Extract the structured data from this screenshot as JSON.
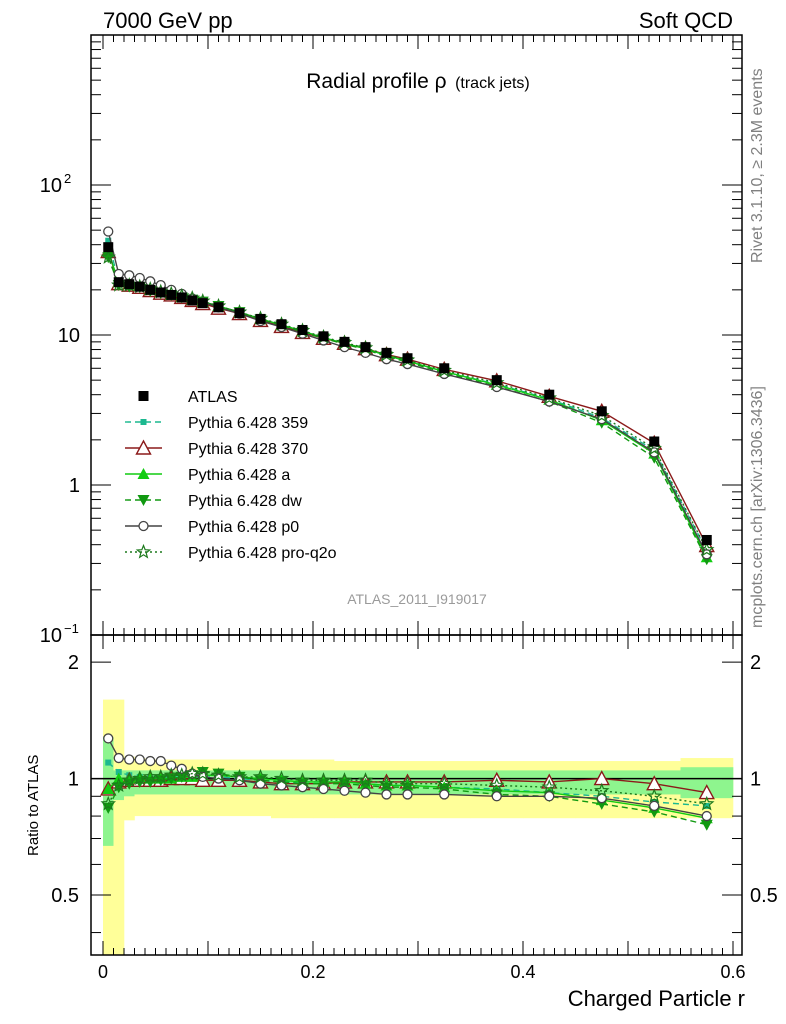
{
  "header": {
    "left": "7000 GeV pp",
    "right": "Soft QCD"
  },
  "side_labels": {
    "rivet": "Rivet 3.1.10, ≥ 2.3M events",
    "mcplots": "mcplots.cern.ch [arXiv:1306.3436]"
  },
  "chart_data": [
    {
      "type": "scatter",
      "title_main": "Radial profile ρ",
      "title_sub": "(track jets)",
      "watermark": "ATLAS_2011_I919017",
      "xlim": [
        0,
        0.6
      ],
      "ylim": [
        0.1,
        1000
      ],
      "yscale": "log",
      "ytick_labels": [
        {
          "value": 0.1,
          "base": "10",
          "exp": "−1"
        },
        {
          "value": 1,
          "base": "1",
          "exp": ""
        },
        {
          "value": 10,
          "base": "10",
          "exp": ""
        },
        {
          "value": 100,
          "base": "10",
          "exp": "2"
        }
      ],
      "legend_position": "lower-left",
      "x": [
        0.005,
        0.015,
        0.025,
        0.035,
        0.045,
        0.055,
        0.065,
        0.075,
        0.085,
        0.095,
        0.11,
        0.13,
        0.15,
        0.17,
        0.19,
        0.21,
        0.23,
        0.25,
        0.27,
        0.29,
        0.325,
        0.375,
        0.425,
        0.475,
        0.525,
        0.575
      ],
      "series": [
        {
          "name": "ATLAS",
          "color": "#000000",
          "marker": "square",
          "line": "none",
          "values": [
            38.5,
            22.5,
            21.8,
            21.0,
            20.0,
            19.2,
            18.5,
            17.8,
            17.0,
            16.3,
            15.3,
            14.0,
            12.8,
            11.8,
            10.8,
            9.8,
            9.0,
            8.3,
            7.6,
            7.0,
            6.0,
            5.0,
            4.0,
            3.1,
            1.95,
            0.43
          ]
        },
        {
          "name": "Pythia 6.428 359",
          "color": "#1bb88f",
          "marker": "small-square",
          "line": "dashed",
          "values": [
            42.5,
            22.5,
            22.0,
            21.5,
            20.5,
            19.5,
            18.7,
            18.0,
            17.2,
            16.5,
            15.4,
            14.0,
            12.7,
            11.6,
            10.6,
            9.6,
            8.8,
            8.1,
            7.3,
            6.7,
            5.7,
            4.7,
            3.75,
            2.8,
            1.7,
            0.365
          ]
        },
        {
          "name": "Pythia 6.428 370",
          "color": "#8b1a1a",
          "marker": "triangle-open",
          "line": "solid",
          "values": [
            36.0,
            22.0,
            21.5,
            20.8,
            19.8,
            19.0,
            18.5,
            17.8,
            17.0,
            16.2,
            15.1,
            13.9,
            12.5,
            11.4,
            10.4,
            9.5,
            8.8,
            8.1,
            7.4,
            6.9,
            5.9,
            4.95,
            3.9,
            3.1,
            1.9,
            0.395
          ]
        },
        {
          "name": "Pythia 6.428 a",
          "color": "#11cc11",
          "marker": "triangle",
          "line": "solid",
          "values": [
            36.0,
            22.5,
            21.8,
            21.2,
            20.0,
            19.2,
            18.5,
            17.9,
            17.2,
            16.6,
            15.6,
            14.2,
            12.8,
            11.7,
            10.6,
            9.6,
            8.8,
            8.1,
            7.3,
            6.7,
            5.7,
            4.65,
            3.7,
            2.7,
            1.62,
            0.33
          ]
        },
        {
          "name": "Pythia 6.428 dw",
          "color": "#119911",
          "marker": "triangle-down",
          "line": "dashed",
          "values": [
            33.0,
            21.5,
            21.0,
            20.8,
            19.7,
            19.0,
            18.5,
            17.8,
            17.2,
            16.7,
            15.6,
            14.2,
            12.7,
            11.6,
            10.5,
            9.5,
            8.7,
            8.0,
            7.2,
            6.6,
            5.6,
            4.55,
            3.6,
            2.6,
            1.52,
            0.32
          ]
        },
        {
          "name": "Pythia 6.428 p0",
          "color": "#444444",
          "marker": "circle-open",
          "line": "solid",
          "values": [
            49.0,
            25.5,
            25.0,
            24.0,
            22.8,
            21.5,
            20.0,
            18.8,
            17.5,
            16.5,
            15.3,
            13.9,
            12.4,
            11.3,
            10.2,
            9.2,
            8.3,
            7.6,
            6.9,
            6.4,
            5.5,
            4.5,
            3.6,
            2.75,
            1.65,
            0.345
          ]
        },
        {
          "name": "Pythia 6.428 pro-q2o",
          "color": "#1d7a1d",
          "marker": "star-open",
          "line": "dotted",
          "values": [
            33.0,
            21.5,
            21.5,
            21.0,
            20.2,
            19.4,
            18.8,
            18.2,
            17.6,
            16.8,
            15.6,
            14.2,
            12.9,
            11.8,
            10.7,
            9.7,
            8.9,
            8.2,
            7.4,
            6.8,
            5.8,
            4.8,
            3.8,
            2.9,
            1.75,
            0.37
          ]
        }
      ]
    },
    {
      "type": "scatter",
      "ylabel": "Ratio to ATLAS",
      "xlabel": "Charged Particle r",
      "xlim": [
        0,
        0.6
      ],
      "ylim": [
        0.35,
        2.35
      ],
      "yscale": "log",
      "xtick_labels": [
        "0",
        "0.2",
        "0.4",
        "0.6"
      ],
      "ytick_labels": [
        "0.5",
        "1",
        "2"
      ],
      "x": [
        0.005,
        0.015,
        0.025,
        0.035,
        0.045,
        0.055,
        0.065,
        0.075,
        0.085,
        0.095,
        0.11,
        0.13,
        0.15,
        0.17,
        0.19,
        0.21,
        0.23,
        0.25,
        0.27,
        0.29,
        0.325,
        0.375,
        0.425,
        0.475,
        0.525,
        0.575
      ],
      "bands": {
        "edges": [
          0.0,
          0.01,
          0.02,
          0.03,
          0.04,
          0.05,
          0.06,
          0.07,
          0.08,
          0.09,
          0.1,
          0.12,
          0.14,
          0.16,
          0.18,
          0.2,
          0.22,
          0.24,
          0.26,
          0.28,
          0.3,
          0.35,
          0.4,
          0.45,
          0.5,
          0.55,
          0.6
        ],
        "stat_color": "#8ef58e",
        "syst_color": "#ffff99",
        "syst": [
          [
            0.3,
            1.6
          ],
          [
            0.3,
            1.6
          ],
          [
            0.78,
            1.14
          ],
          [
            0.8,
            1.13
          ],
          [
            0.8,
            1.12
          ],
          [
            0.8,
            1.12
          ],
          [
            0.8,
            1.12
          ],
          [
            0.8,
            1.12
          ],
          [
            0.8,
            1.12
          ],
          [
            0.8,
            1.12
          ],
          [
            0.8,
            1.12
          ],
          [
            0.8,
            1.12
          ],
          [
            0.8,
            1.12
          ],
          [
            0.79,
            1.12
          ],
          [
            0.79,
            1.12
          ],
          [
            0.79,
            1.12
          ],
          [
            0.79,
            1.11
          ],
          [
            0.79,
            1.11
          ],
          [
            0.79,
            1.11
          ],
          [
            0.79,
            1.11
          ],
          [
            0.79,
            1.11
          ],
          [
            0.79,
            1.11
          ],
          [
            0.79,
            1.11
          ],
          [
            0.79,
            1.11
          ],
          [
            0.79,
            1.11
          ],
          [
            0.79,
            1.13
          ]
        ],
        "stat": [
          [
            0.67,
            1.28
          ],
          [
            0.88,
            1.05
          ],
          [
            0.9,
            1.05
          ],
          [
            0.91,
            1.05
          ],
          [
            0.91,
            1.05
          ],
          [
            0.91,
            1.05
          ],
          [
            0.91,
            1.05
          ],
          [
            0.91,
            1.05
          ],
          [
            0.91,
            1.05
          ],
          [
            0.91,
            1.05
          ],
          [
            0.91,
            1.05
          ],
          [
            0.91,
            1.05
          ],
          [
            0.91,
            1.05
          ],
          [
            0.91,
            1.05
          ],
          [
            0.91,
            1.05
          ],
          [
            0.91,
            1.05
          ],
          [
            0.91,
            1.05
          ],
          [
            0.91,
            1.05
          ],
          [
            0.91,
            1.05
          ],
          [
            0.91,
            1.05
          ],
          [
            0.91,
            1.05
          ],
          [
            0.91,
            1.05
          ],
          [
            0.91,
            1.05
          ],
          [
            0.91,
            1.05
          ],
          [
            0.91,
            1.05
          ],
          [
            0.89,
            1.07
          ]
        ]
      },
      "reference_line": 1,
      "series": [
        {
          "name": "Pythia 6.428 359",
          "color": "#1bb88f",
          "marker": "small-square",
          "line": "dashed",
          "values": [
            1.1,
            1.04,
            1.02,
            1.01,
            1.01,
            1.01,
            1.01,
            1.01,
            1.01,
            1.01,
            1.01,
            1.0,
            0.99,
            0.98,
            0.98,
            0.98,
            0.98,
            0.97,
            0.96,
            0.96,
            0.95,
            0.94,
            0.92,
            0.9,
            0.87,
            0.85
          ]
        },
        {
          "name": "Pythia 6.428 370",
          "color": "#8b1a1a",
          "marker": "triangle-open",
          "line": "solid",
          "values": [
            0.94,
            0.98,
            0.99,
            0.99,
            0.99,
            0.99,
            1.0,
            1.0,
            1.0,
            0.99,
            0.99,
            0.99,
            0.98,
            0.97,
            0.97,
            0.97,
            0.98,
            0.98,
            0.98,
            0.98,
            0.98,
            0.99,
            0.98,
            1.0,
            0.97,
            0.92
          ]
        },
        {
          "name": "Pythia 6.428 a",
          "color": "#11cc11",
          "marker": "triangle",
          "line": "solid",
          "values": [
            0.94,
            1.0,
            1.0,
            1.01,
            1.0,
            1.0,
            1.0,
            1.01,
            1.01,
            1.02,
            1.02,
            1.01,
            1.0,
            0.99,
            0.98,
            0.98,
            0.98,
            0.97,
            0.96,
            0.96,
            0.95,
            0.93,
            0.92,
            0.88,
            0.84,
            0.79
          ]
        },
        {
          "name": "Pythia 6.428 dw",
          "color": "#119911",
          "marker": "triangle-down",
          "line": "dashed",
          "values": [
            0.84,
            0.95,
            0.97,
            0.98,
            0.98,
            0.99,
            1.0,
            1.01,
            1.02,
            1.04,
            1.03,
            1.01,
            0.99,
            0.98,
            0.97,
            0.97,
            0.97,
            0.96,
            0.95,
            0.95,
            0.94,
            0.91,
            0.9,
            0.86,
            0.82,
            0.76
          ]
        },
        {
          "name": "Pythia 6.428 p0",
          "color": "#444444",
          "marker": "circle-open",
          "line": "solid",
          "values": [
            1.27,
            1.13,
            1.12,
            1.12,
            1.11,
            1.11,
            1.08,
            1.06,
            1.03,
            1.01,
            1.0,
            0.99,
            0.97,
            0.96,
            0.95,
            0.94,
            0.93,
            0.92,
            0.91,
            0.91,
            0.91,
            0.9,
            0.9,
            0.89,
            0.85,
            0.8
          ]
        },
        {
          "name": "Pythia 6.428 pro-q2o",
          "color": "#1d7a1d",
          "marker": "star-open",
          "line": "dotted",
          "values": [
            0.86,
            0.96,
            0.99,
            1.0,
            1.01,
            1.01,
            1.02,
            1.02,
            1.03,
            1.03,
            1.02,
            1.01,
            1.01,
            1.0,
            0.99,
            0.99,
            0.99,
            0.99,
            0.97,
            0.97,
            0.97,
            0.96,
            0.95,
            0.93,
            0.9,
            0.86
          ]
        }
      ]
    }
  ]
}
